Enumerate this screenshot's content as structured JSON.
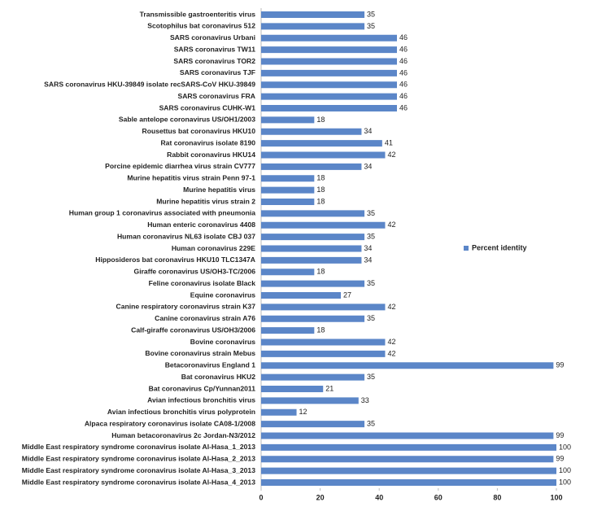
{
  "chart_data": {
    "type": "bar",
    "orientation": "horizontal",
    "categories": [
      "Transmissible gastroenteritis virus",
      "Scotophilus bat coronavirus 512",
      "SARS coronavirus Urbani",
      "SARS coronavirus TW11",
      "SARS coronavirus TOR2",
      "SARS coronavirus TJF",
      "SARS coronavirus HKU-39849 isolate recSARS-CoV HKU-39849",
      "SARS coronavirus FRA",
      "SARS coronavirus CUHK-W1",
      "Sable antelope coronavirus US/OH1/2003",
      "Rousettus bat coronavirus HKU10",
      "Rat coronavirus isolate 8190",
      "Rabbit coronavirus HKU14",
      "Porcine epidemic diarrhea virus strain CV777",
      "Murine hepatitis virus strain Penn 97-1",
      "Murine hepatitis virus",
      "Murine hepatitis virus strain 2",
      "Human group 1 coronavirus associated with pneumonia",
      "Human enteric coronavirus 4408",
      "Human coronavirus NL63 isolate CBJ 037",
      "Human coronavirus 229E",
      "Hipposideros bat coronavirus HKU10 TLC1347A",
      "Giraffe coronavirus US/OH3-TC/2006",
      "Feline coronavirus isolate Black",
      "Equine coronavirus",
      "Canine respiratory coronavirus strain K37",
      "Canine coronavirus strain A76",
      "Calf-giraffe coronavirus US/OH3/2006",
      "Bovine coronavirus",
      "Bovine coronavirus strain Mebus",
      "Betacoronavirus England 1",
      "Bat coronavirus HKU2",
      "Bat coronavirus Cp/Yunnan2011",
      "Avian infectious bronchitis virus",
      "Avian infectious bronchitis virus polyprotein",
      "Alpaca respiratory coronavirus isolate CA08-1/2008",
      "Human betacoronavirus 2c Jordan-N3/2012",
      "Middle East respiratory syndrome coronavirus isolate Al-Hasa_1_2013",
      "Middle East respiratory syndrome coronavirus isolate Al-Hasa_2_2013",
      "Middle East respiratory syndrome coronavirus isolate Al-Hasa_3_2013",
      "Middle East respiratory syndrome coronavirus isolate Al-Hasa_4_2013"
    ],
    "series": [
      {
        "name": "Percent identity",
        "color": "#5b86c8",
        "values": [
          35,
          35,
          46,
          46,
          46,
          46,
          46,
          46,
          46,
          18,
          34,
          41,
          42,
          34,
          18,
          18,
          18,
          35,
          42,
          35,
          34,
          34,
          18,
          35,
          27,
          42,
          35,
          18,
          42,
          42,
          99,
          35,
          21,
          33,
          12,
          35,
          99,
          100,
          99,
          100,
          100
        ]
      }
    ],
    "xlim": [
      0,
      100
    ],
    "xticks": [
      0,
      20,
      40,
      60,
      80,
      100
    ],
    "legend": "right"
  }
}
